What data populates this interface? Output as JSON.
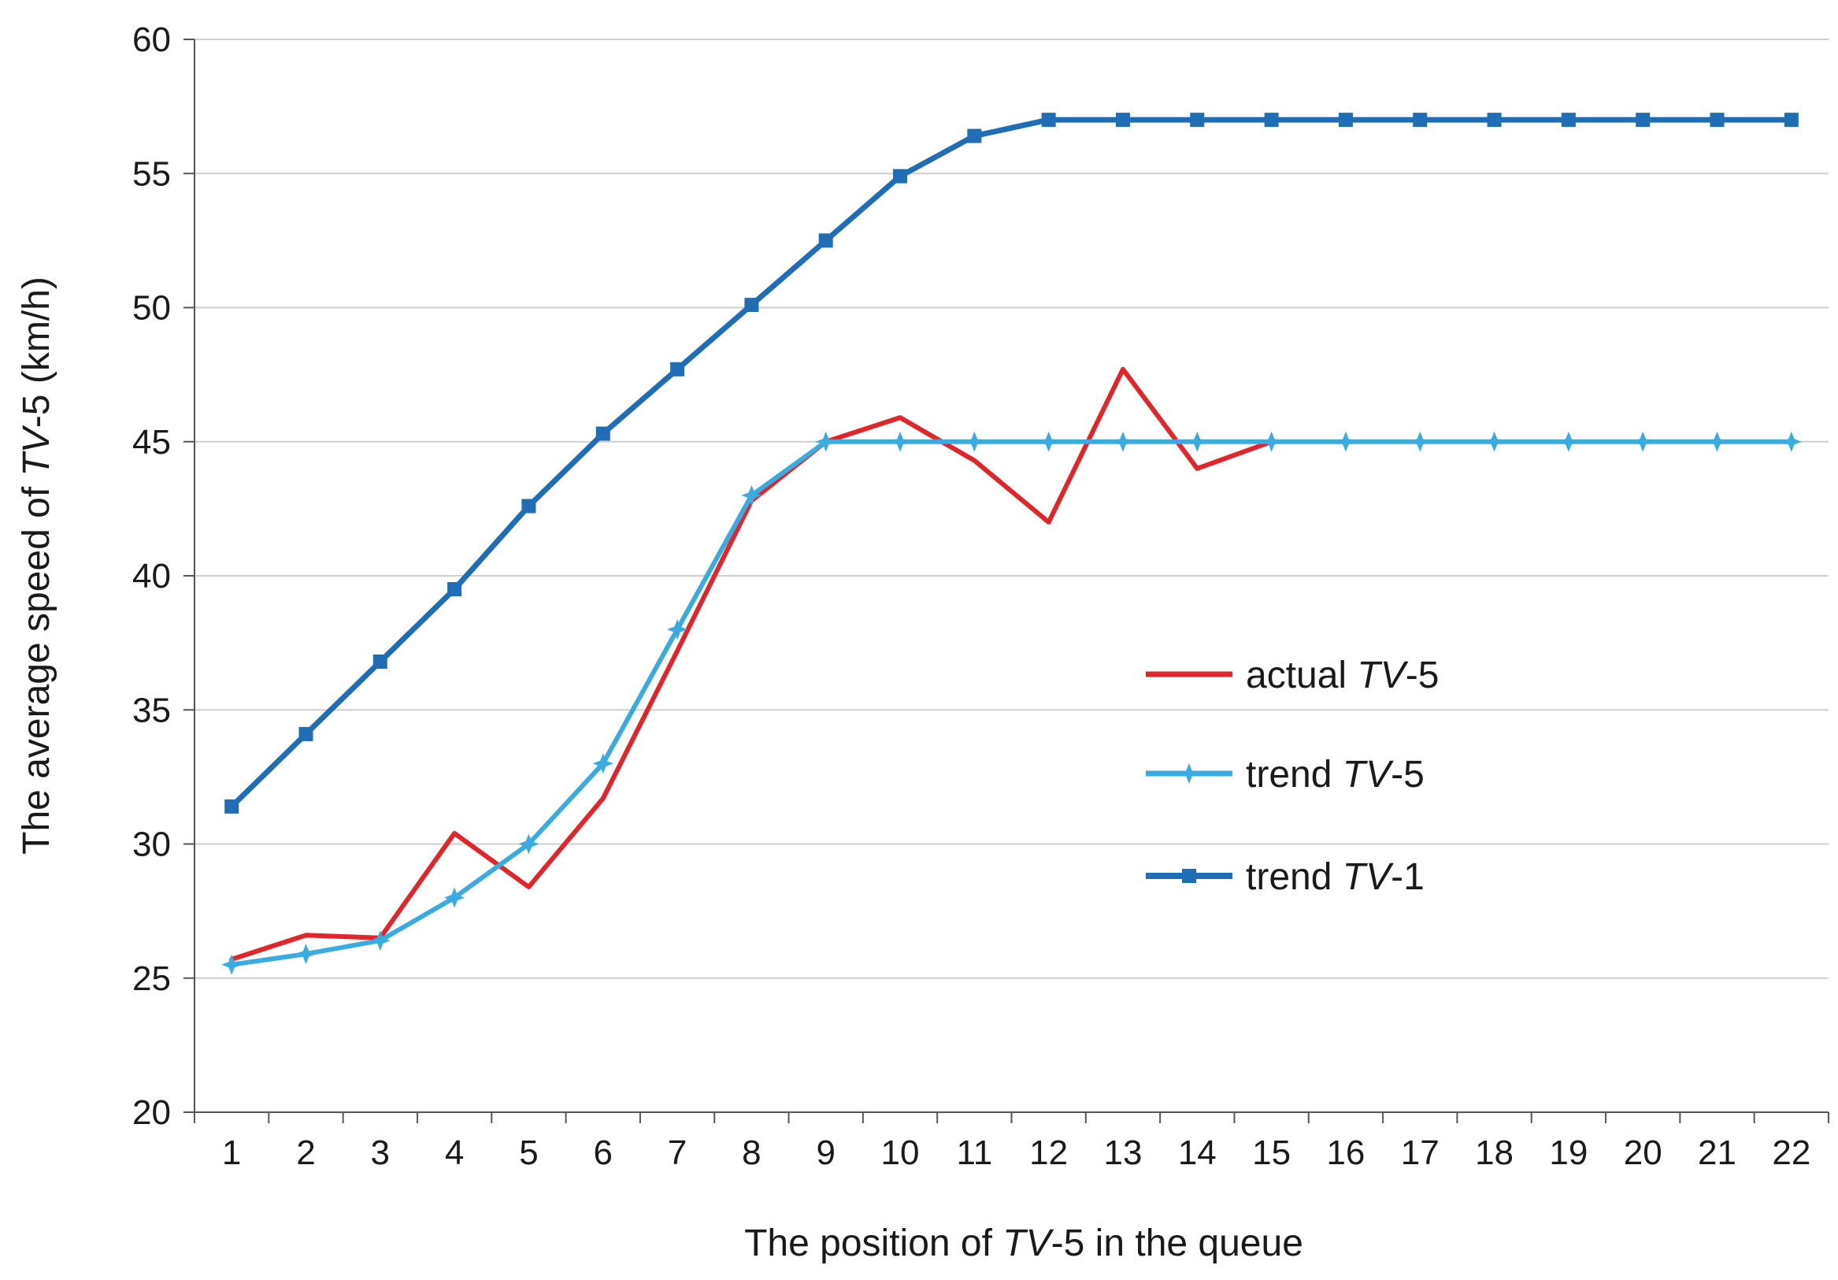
{
  "chart_data": {
    "type": "line",
    "title": "",
    "xlabel": {
      "prefix": "The position of ",
      "italic": "TV",
      "suffix": "-5 in the queue"
    },
    "ylabel": {
      "prefix": "The average speed of ",
      "italic": "TV",
      "suffix": "-5 (km/h)"
    },
    "categories": [
      1,
      2,
      3,
      4,
      5,
      6,
      7,
      8,
      9,
      10,
      11,
      12,
      13,
      14,
      15,
      16,
      17,
      18,
      19,
      20,
      21,
      22
    ],
    "ylim": [
      20,
      60
    ],
    "yticks": [
      20,
      25,
      30,
      35,
      40,
      45,
      50,
      55,
      60
    ],
    "grid": "horizontal",
    "legend_position": "center-right",
    "series": [
      {
        "name": "actual TV-5",
        "label": {
          "prefix": "actual ",
          "italic": "TV",
          "suffix": "-5"
        },
        "color": "#e0262b",
        "marker": "none",
        "values": [
          25.7,
          26.6,
          26.5,
          30.4,
          28.4,
          31.7,
          37.2,
          42.8,
          45.0,
          45.9,
          44.3,
          42.0,
          47.7,
          44.0,
          45.0,
          null,
          null,
          null,
          null,
          null,
          null,
          null
        ]
      },
      {
        "name": "trend TV-5",
        "label": {
          "prefix": "trend ",
          "italic": "TV",
          "suffix": "-5"
        },
        "color": "#3aabe0",
        "marker": "star",
        "values": [
          25.5,
          25.9,
          26.4,
          28.0,
          30.0,
          33.0,
          38.0,
          43.0,
          45.0,
          45.0,
          45.0,
          45.0,
          45.0,
          45.0,
          45.0,
          45.0,
          45.0,
          45.0,
          45.0,
          45.0,
          45.0,
          45.0
        ]
      },
      {
        "name": "trend TV-1",
        "label": {
          "prefix": "trend ",
          "italic": "TV",
          "suffix": "-1"
        },
        "color": "#1f6db5",
        "marker": "square",
        "values": [
          31.4,
          34.1,
          36.8,
          39.5,
          42.6,
          45.3,
          47.7,
          50.1,
          52.5,
          54.9,
          56.4,
          57.0,
          57.0,
          57.0,
          57.0,
          57.0,
          57.0,
          57.0,
          57.0,
          57.0,
          57.0,
          57.0
        ]
      }
    ]
  }
}
